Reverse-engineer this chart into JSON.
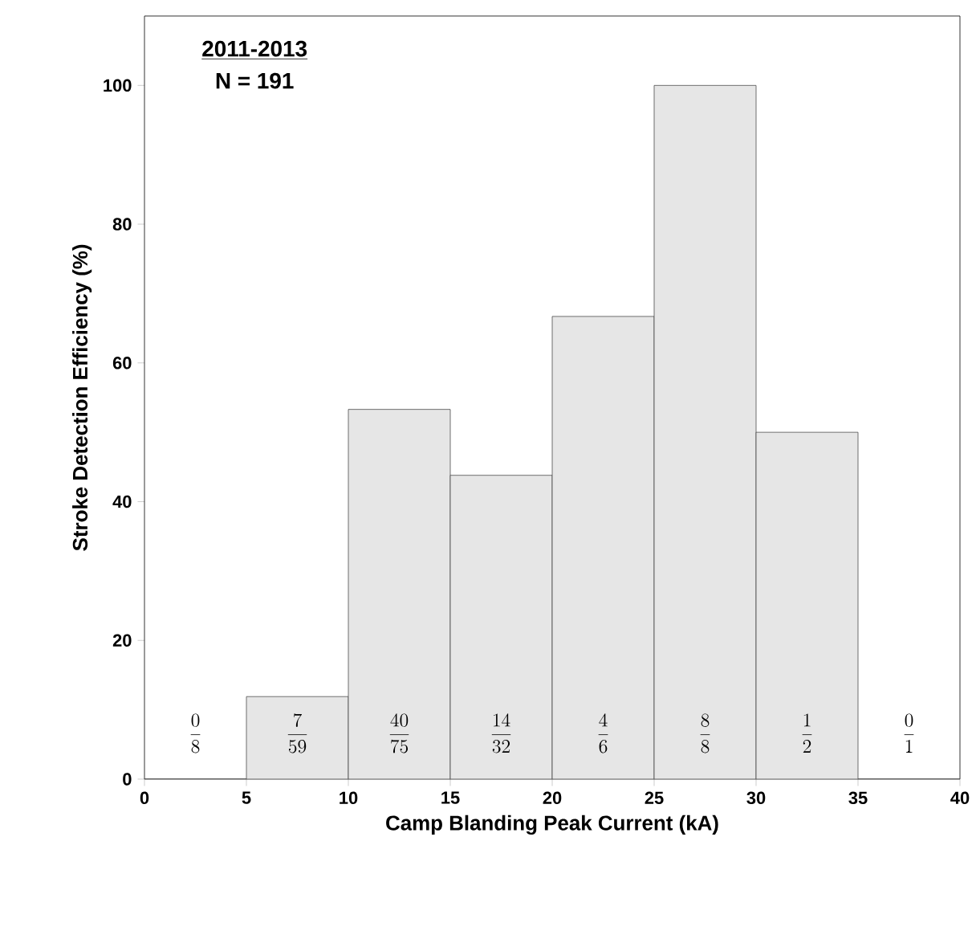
{
  "chart_data": {
    "type": "histogram",
    "xlabel": "Camp Blanding Peak Current (kA)",
    "ylabel": "Stroke Detection Efficiency (%)",
    "bins": [
      0,
      5,
      10,
      15,
      20,
      25,
      30,
      35,
      40
    ],
    "values": [
      0,
      11.9,
      53.3,
      43.8,
      66.7,
      100,
      50,
      0
    ],
    "value_labels": [
      "\\frac{0}{8}",
      "\\frac{7}{59}",
      "\\frac{40}{75}",
      "\\frac{14}{32}",
      "\\frac{4}{6}",
      "\\frac{8}{8}",
      "\\frac{1}{2}",
      "\\frac{0}{1}"
    ],
    "color": "#e6e6e6",
    "xlim": [
      0,
      40
    ],
    "xticks": [
      0,
      5,
      10,
      15,
      20,
      25,
      30,
      35,
      40
    ],
    "ylim": [
      0,
      110
    ],
    "yticks": [
      0,
      20,
      40,
      60,
      80,
      100
    ],
    "annotations": [
      "2011-2013",
      "N = 191"
    ],
    "grid": false
  }
}
